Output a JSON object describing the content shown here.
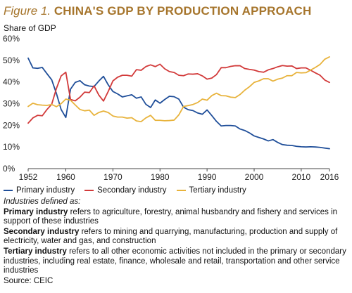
{
  "figure": {
    "label": "Figure 1.",
    "title": "CHINA'S GDP BY PRODUCTION APPROACH"
  },
  "colors": {
    "primary": "#1f4e99",
    "secondary": "#d23a3a",
    "tertiary": "#e8b33c",
    "title": "#a6752c"
  },
  "chart_data": {
    "type": "line",
    "title": "CHINA'S GDP BY PRODUCTION APPROACH",
    "ylabel": "Share of GDP",
    "xlabel": "",
    "ylim": [
      0,
      60
    ],
    "xlim": [
      1952,
      2016
    ],
    "yticks": [
      "0%",
      "10%",
      "20%",
      "30%",
      "40%",
      "50%",
      "60%"
    ],
    "xticks": [
      1952,
      1960,
      1970,
      1980,
      1990,
      2000,
      2010,
      2016
    ],
    "grid": false,
    "legend_position": "bottom",
    "x": [
      1952,
      1953,
      1954,
      1955,
      1956,
      1957,
      1958,
      1959,
      1960,
      1961,
      1962,
      1963,
      1964,
      1965,
      1966,
      1967,
      1968,
      1969,
      1970,
      1971,
      1972,
      1973,
      1974,
      1975,
      1976,
      1977,
      1978,
      1979,
      1980,
      1981,
      1982,
      1983,
      1984,
      1985,
      1986,
      1987,
      1988,
      1989,
      1990,
      1991,
      1992,
      1993,
      1994,
      1995,
      1996,
      1997,
      1998,
      1999,
      2000,
      2001,
      2002,
      2003,
      2004,
      2005,
      2006,
      2007,
      2008,
      2009,
      2010,
      2011,
      2012,
      2013,
      2014,
      2015,
      2016
    ],
    "series": [
      {
        "name": "Primary industry",
        "values": [
          51,
          46.5,
          46.3,
          46.7,
          43.8,
          41,
          34.7,
          27.3,
          23.6,
          36.7,
          39.8,
          40.6,
          38.7,
          38.1,
          37.9,
          40.4,
          42.6,
          38.7,
          35.6,
          34.5,
          33.1,
          33.6,
          34.1,
          32.5,
          33.1,
          29.7,
          28.2,
          31.7,
          30.2,
          31.9,
          33.4,
          33.2,
          32.1,
          28.4,
          27.2,
          26.8,
          25.7,
          25.1,
          27.1,
          24.5,
          21.8,
          19.7,
          19.9,
          19.9,
          19.7,
          18.3,
          17.6,
          16.5,
          15.1,
          14.4,
          13.7,
          12.8,
          13.4,
          12.1,
          11.1,
          10.8,
          10.7,
          10.3,
          10.1,
          10,
          10.1,
          10,
          9.8,
          9.5,
          9.2
        ]
      },
      {
        "name": "Secondary industry",
        "values": [
          21,
          23.4,
          24.6,
          24.4,
          27.3,
          29.7,
          37,
          42.8,
          44.5,
          31.9,
          31.3,
          33,
          35.3,
          35.1,
          38.2,
          34,
          31.2,
          35.6,
          40.5,
          42.2,
          43.1,
          43.1,
          42.7,
          45.7,
          45.4,
          47.1,
          47.9,
          47.1,
          48.2,
          46.1,
          44.8,
          44.4,
          43.1,
          42.9,
          43.7,
          43.6,
          43.8,
          42.8,
          41.3,
          41.8,
          43.4,
          46.6,
          46.6,
          47.2,
          47.5,
          47.5,
          46.2,
          45.8,
          45.5,
          44.8,
          44.5,
          45.6,
          46.2,
          47,
          47.6,
          47.3,
          47.4,
          46.2,
          46.5,
          46.5,
          45.4,
          44.2,
          43.1,
          40.9,
          39.8
        ]
      },
      {
        "name": "Tertiary industry",
        "values": [
          28.7,
          30.2,
          29.5,
          29.3,
          29.2,
          29.6,
          28.6,
          30,
          32.1,
          31.6,
          29.4,
          27.3,
          26.7,
          27,
          24.6,
          25.9,
          26.6,
          25.9,
          24.3,
          23.8,
          23.8,
          23.3,
          23.5,
          22,
          21.7,
          23.4,
          24.6,
          22.3,
          22.3,
          22.1,
          22.2,
          22.4,
          24.8,
          28.7,
          29.1,
          29.6,
          30.5,
          32.1,
          31.6,
          33.7,
          34.8,
          33.7,
          33.6,
          33,
          32.8,
          34.2,
          36.2,
          37.8,
          39.8,
          40.5,
          41.5,
          41.5,
          40.4,
          41.3,
          41.8,
          42.9,
          42.9,
          44.4,
          44.2,
          44.3,
          45.5,
          46.7,
          48.1,
          50.5,
          51.6
        ]
      }
    ]
  },
  "legend": {
    "items": [
      {
        "label": "Primary industry"
      },
      {
        "label": "Secondary industry"
      },
      {
        "label": "Tertiary industry"
      }
    ]
  },
  "notes": {
    "defined_as": "Industries defined as:",
    "primary_term": "Primary industry",
    "primary_text": " refers to agriculture, forestry, animal husbandry and fishery and services in support of these industries",
    "secondary_term": "Secondary industry",
    "secondary_text": " refers to mining and quarrying, manufacturing, production and supply of electricity, water and gas, and construction",
    "tertiary_term": "Tertiary industry",
    "tertiary_text": " refers to all other economic activities not included in the primary or secondary industries, including real estate, finance, wholesale and retail, transportation and other service industries",
    "source": "Source: CEIC"
  }
}
